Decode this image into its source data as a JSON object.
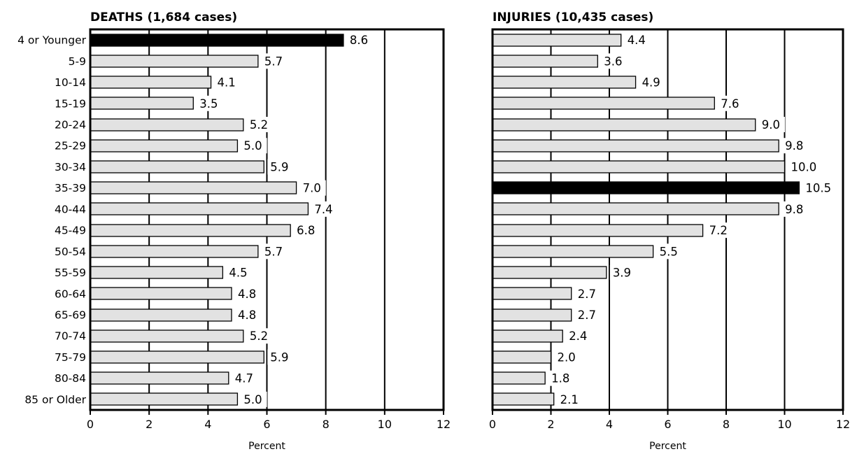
{
  "chart_data": [
    {
      "type": "bar",
      "orientation": "horizontal",
      "title": "DEATHS (1,684 cases)",
      "xlabel": "Percent",
      "xlim": [
        0,
        12
      ],
      "xticks": [
        0,
        2,
        4,
        6,
        8,
        10,
        12
      ],
      "grid": "vertical lines at 2, 4, 6, 8, 10",
      "categories": [
        "4 or Younger",
        "5-9",
        "10-14",
        "15-19",
        "20-24",
        "25-29",
        "30-34",
        "35-39",
        "40-44",
        "45-49",
        "50-54",
        "55-59",
        "60-64",
        "65-69",
        "70-74",
        "75-79",
        "80-84",
        "85 or Older"
      ],
      "values": [
        8.6,
        5.7,
        4.1,
        3.5,
        5.2,
        5.0,
        5.9,
        7.0,
        7.4,
        6.8,
        5.7,
        4.5,
        4.8,
        4.8,
        5.2,
        5.9,
        4.7,
        5.0
      ],
      "value_labels": [
        "8.6",
        "5.7",
        "4.1",
        "3.5",
        "5.2",
        "5.0",
        "5.9",
        "7.0",
        "7.4",
        "6.8",
        "5.7",
        "4.5",
        "4.8",
        "4.8",
        "5.2",
        "5.9",
        "4.7",
        "5.0"
      ],
      "highlight_index": 0,
      "colors": {
        "bar": "#e2e2e2",
        "highlight": "#000000",
        "outline": "#000000"
      }
    },
    {
      "type": "bar",
      "orientation": "horizontal",
      "title": "INJURIES (10,435 cases)",
      "xlabel": "Percent",
      "xlim": [
        0,
        12
      ],
      "xticks": [
        0,
        2,
        4,
        6,
        8,
        10,
        12
      ],
      "grid": "vertical lines at 2, 4, 6, 8, 10",
      "categories": [
        "4 or Younger",
        "5-9",
        "10-14",
        "15-19",
        "20-24",
        "25-29",
        "30-34",
        "35-39",
        "40-44",
        "45-49",
        "50-54",
        "55-59",
        "60-64",
        "65-69",
        "70-74",
        "75-79",
        "80-84",
        "85 or Older"
      ],
      "values": [
        4.4,
        3.6,
        4.9,
        7.6,
        9.0,
        9.8,
        10.0,
        10.5,
        9.8,
        7.2,
        5.5,
        3.9,
        2.7,
        2.7,
        2.4,
        2.0,
        1.8,
        2.1
      ],
      "value_labels": [
        "4.4",
        "3.6",
        "4.9",
        "7.6",
        "9.0",
        "9.8",
        "10.0",
        "10.5",
        "9.8",
        "7.2",
        "5.5",
        "3.9",
        "2.7",
        "2.7",
        "2.4",
        "2.0",
        "1.8",
        "2.1"
      ],
      "highlight_index": 7,
      "colors": {
        "bar": "#e2e2e2",
        "highlight": "#000000",
        "outline": "#000000"
      }
    }
  ]
}
